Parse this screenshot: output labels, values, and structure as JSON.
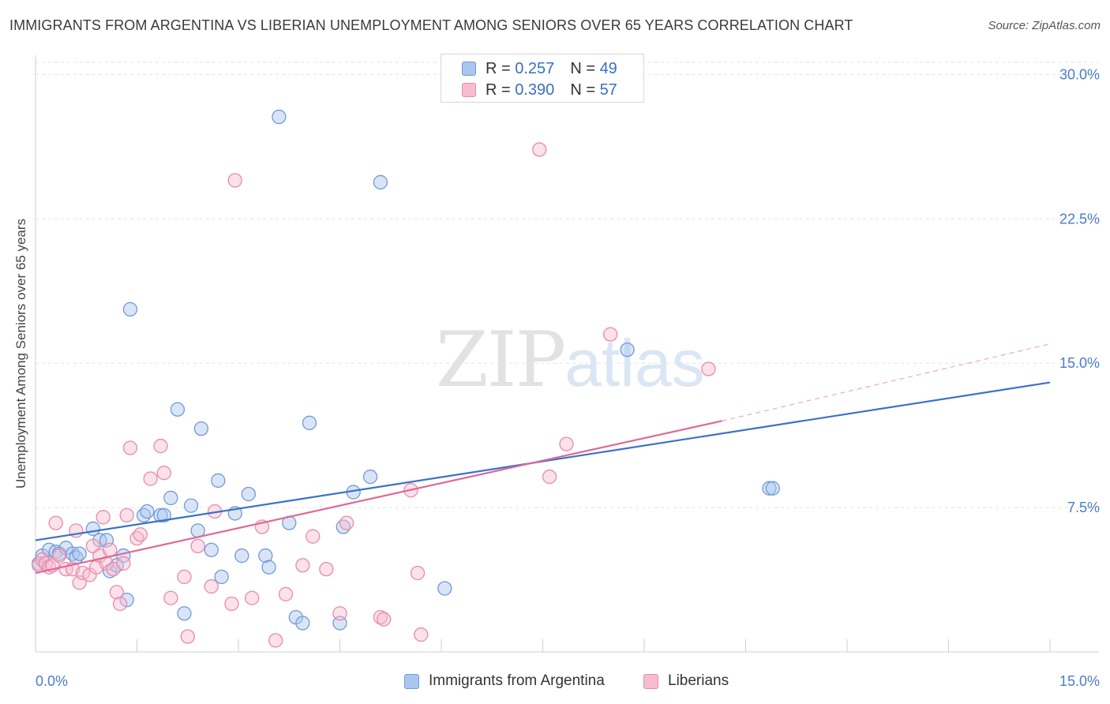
{
  "title": "IMMIGRANTS FROM ARGENTINA VS LIBERIAN UNEMPLOYMENT AMONG SENIORS OVER 65 YEARS CORRELATION CHART",
  "source": "Source: ZipAtlas.com",
  "watermark": {
    "zip": "ZIP",
    "atlas": "atlas"
  },
  "legend": {
    "r_label": "R =",
    "n_label": "N =",
    "rows": [
      {
        "r": "0.257",
        "n": "49",
        "fill": "#aac6ee",
        "stroke": "#6f9ad8"
      },
      {
        "r": "0.390",
        "n": "57",
        "fill": "#f7bcd0",
        "stroke": "#e98aab"
      }
    ]
  },
  "chart_data": {
    "type": "scatter",
    "title": "IMMIGRANTS FROM ARGENTINA VS LIBERIAN UNEMPLOYMENT AMONG SENIORS OVER 65 YEARS CORRELATION CHART",
    "xlabel": "",
    "ylabel": "Unemployment Among Seniors over 65 years",
    "xlim": [
      0,
      15
    ],
    "ylim": [
      0,
      31
    ],
    "x_tick_labels": [
      "0.0%",
      "15.0%"
    ],
    "y_ticks": [
      7.5,
      15.0,
      22.5,
      30.0
    ],
    "y_tick_labels": [
      "7.5%",
      "15.0%",
      "22.5%",
      "30.0%"
    ],
    "grid": true,
    "legend_position": "top-center",
    "series": [
      {
        "name": "Immigrants from Argentina",
        "color": "#6f9ad8",
        "fill": "#aac6ee",
        "trend": {
          "x": [
            0,
            15
          ],
          "y": [
            5.8,
            14.0
          ]
        },
        "points": [
          [
            0.05,
            4.6
          ],
          [
            0.1,
            5.0
          ],
          [
            0.2,
            5.3
          ],
          [
            0.3,
            5.2
          ],
          [
            0.35,
            5.1
          ],
          [
            0.45,
            5.4
          ],
          [
            0.55,
            5.1
          ],
          [
            0.6,
            4.9
          ],
          [
            0.65,
            5.1
          ],
          [
            0.85,
            6.4
          ],
          [
            0.95,
            5.8
          ],
          [
            1.05,
            5.8
          ],
          [
            1.1,
            4.2
          ],
          [
            1.2,
            4.5
          ],
          [
            1.3,
            5.0
          ],
          [
            1.35,
            2.7
          ],
          [
            1.4,
            17.8
          ],
          [
            1.6,
            7.1
          ],
          [
            1.65,
            7.3
          ],
          [
            1.85,
            7.1
          ],
          [
            1.9,
            7.1
          ],
          [
            2.0,
            8.0
          ],
          [
            2.1,
            12.6
          ],
          [
            2.2,
            2.0
          ],
          [
            2.3,
            7.6
          ],
          [
            2.4,
            6.3
          ],
          [
            2.45,
            11.6
          ],
          [
            2.6,
            5.3
          ],
          [
            2.7,
            8.9
          ],
          [
            2.75,
            3.9
          ],
          [
            2.95,
            7.2
          ],
          [
            3.05,
            5.0
          ],
          [
            3.15,
            8.2
          ],
          [
            3.4,
            5.0
          ],
          [
            3.45,
            4.4
          ],
          [
            3.6,
            27.8
          ],
          [
            3.75,
            6.7
          ],
          [
            3.85,
            1.8
          ],
          [
            3.95,
            1.5
          ],
          [
            4.05,
            11.9
          ],
          [
            4.5,
            1.5
          ],
          [
            4.55,
            6.5
          ],
          [
            4.7,
            8.3
          ],
          [
            4.95,
            9.1
          ],
          [
            5.1,
            24.4
          ],
          [
            6.05,
            3.3
          ],
          [
            8.75,
            15.7
          ],
          [
            10.85,
            8.5
          ],
          [
            10.9,
            8.5
          ]
        ]
      },
      {
        "name": "Liberians",
        "color": "#e98aab",
        "fill": "#f7bcd0",
        "trend": {
          "x": [
            0,
            10.15
          ],
          "y": [
            4.1,
            12.0
          ]
        },
        "trend_extension": {
          "x": [
            10.15,
            15
          ],
          "y": [
            12.0,
            16.0
          ]
        },
        "points": [
          [
            0.05,
            4.5
          ],
          [
            0.1,
            4.8
          ],
          [
            0.15,
            4.6
          ],
          [
            0.2,
            4.4
          ],
          [
            0.25,
            4.5
          ],
          [
            0.3,
            6.7
          ],
          [
            0.35,
            5.0
          ],
          [
            0.45,
            4.3
          ],
          [
            0.55,
            4.3
          ],
          [
            0.6,
            6.3
          ],
          [
            0.65,
            3.6
          ],
          [
            0.7,
            4.1
          ],
          [
            0.8,
            4.0
          ],
          [
            0.85,
            5.5
          ],
          [
            0.9,
            4.4
          ],
          [
            0.95,
            5.0
          ],
          [
            1.0,
            7.0
          ],
          [
            1.05,
            4.6
          ],
          [
            1.1,
            5.3
          ],
          [
            1.15,
            4.3
          ],
          [
            1.2,
            3.1
          ],
          [
            1.25,
            2.5
          ],
          [
            1.3,
            4.6
          ],
          [
            1.35,
            7.1
          ],
          [
            1.4,
            10.6
          ],
          [
            1.5,
            5.9
          ],
          [
            1.55,
            6.1
          ],
          [
            1.7,
            9.0
          ],
          [
            1.85,
            10.7
          ],
          [
            1.9,
            9.3
          ],
          [
            2.0,
            2.8
          ],
          [
            2.2,
            3.9
          ],
          [
            2.25,
            0.8
          ],
          [
            2.4,
            5.5
          ],
          [
            2.6,
            3.4
          ],
          [
            2.65,
            7.3
          ],
          [
            2.9,
            2.5
          ],
          [
            2.95,
            24.5
          ],
          [
            3.2,
            2.8
          ],
          [
            3.35,
            6.5
          ],
          [
            3.55,
            0.6
          ],
          [
            3.7,
            3.0
          ],
          [
            3.95,
            4.5
          ],
          [
            4.1,
            6.0
          ],
          [
            4.3,
            4.3
          ],
          [
            4.5,
            2.0
          ],
          [
            4.6,
            6.7
          ],
          [
            5.1,
            1.8
          ],
          [
            5.15,
            1.7
          ],
          [
            5.55,
            8.4
          ],
          [
            5.65,
            4.1
          ],
          [
            5.7,
            0.9
          ],
          [
            7.45,
            26.1
          ],
          [
            7.6,
            9.1
          ],
          [
            7.85,
            10.8
          ],
          [
            8.5,
            16.5
          ],
          [
            9.95,
            14.7
          ]
        ]
      }
    ]
  }
}
